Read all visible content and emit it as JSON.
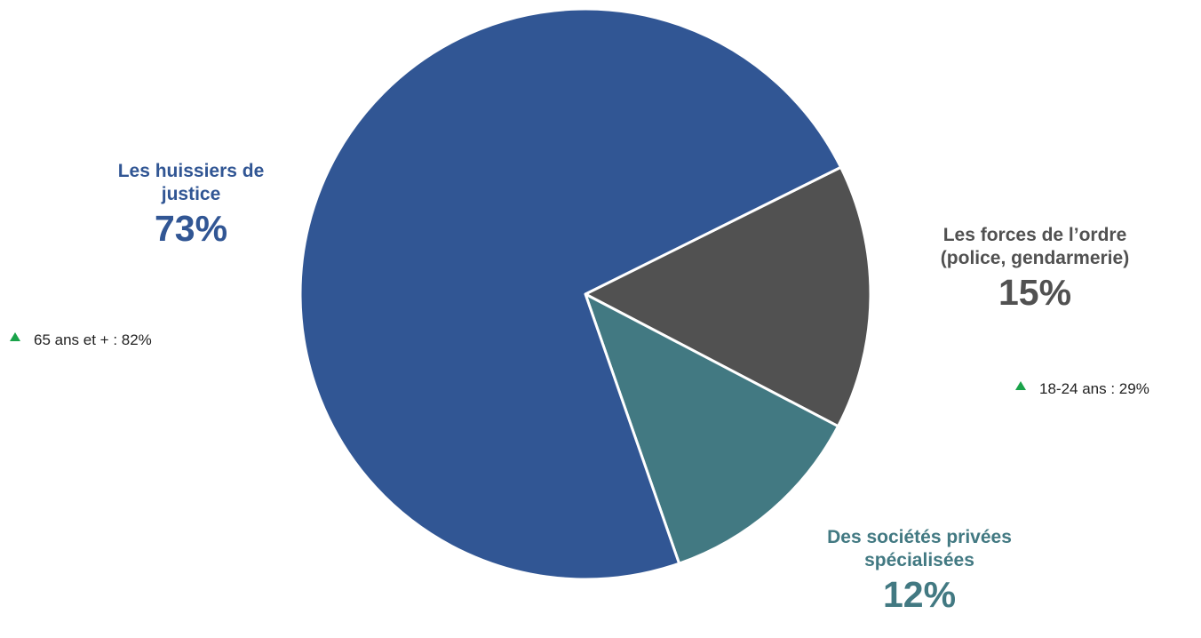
{
  "chart_data": {
    "type": "pie",
    "slices": [
      {
        "label": "Les huissiers de justice",
        "label_lines": [
          "Les huissiers de",
          "justice"
        ],
        "value": 73,
        "value_label": "73%",
        "color": "#315694"
      },
      {
        "label": "Les forces de l’ordre (police, gendarmerie)",
        "label_lines": [
          "Les forces de l’ordre",
          "(police, gendarmerie)"
        ],
        "value": 15,
        "value_label": "15%",
        "color": "#515151"
      },
      {
        "label": "Des sociétés privées spécialisées",
        "label_lines": [
          "Des sociétés privées",
          "spécialisées"
        ],
        "value": 12,
        "value_label": "12%",
        "color": "#427982"
      }
    ],
    "notes": [
      {
        "slice": 0,
        "text": "65 ans et + : 82%"
      },
      {
        "slice": 1,
        "text": "18-24 ans : 29%"
      }
    ],
    "legend": "none"
  },
  "colors": {
    "slice_border": "#ffffff",
    "up_marker": "#1aa34a",
    "note_text": "#222222"
  },
  "icons": {
    "up_marker": "triangle-up-icon"
  }
}
